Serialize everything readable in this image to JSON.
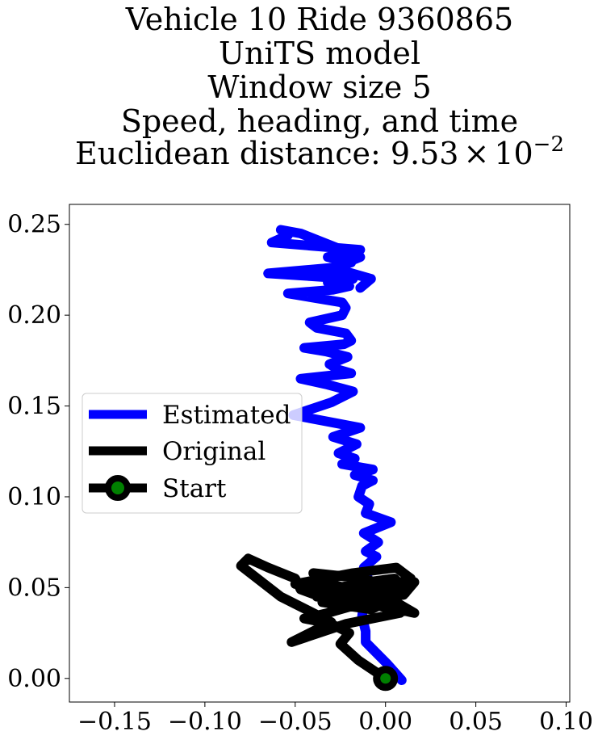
{
  "chart_data": {
    "type": "line",
    "title_lines": [
      "Vehicle 10 Ride 9360865",
      "UniTS model",
      "Window size 5",
      "Speed, heading, and time"
    ],
    "title_distance_prefix": "Euclidean distance: 9.53",
    "title_distance_times": "×",
    "title_distance_base": "10",
    "title_distance_exp": "−2",
    "xlim": [
      -0.175,
      0.102
    ],
    "ylim": [
      -0.013,
      0.261
    ],
    "xticks": [
      -0.15,
      -0.1,
      -0.05,
      0.0,
      0.05,
      0.1
    ],
    "xtick_labels": [
      "−0.15",
      "−0.10",
      "−0.05",
      "0.00",
      "0.05",
      "0.10"
    ],
    "yticks": [
      0.0,
      0.05,
      0.1,
      0.15,
      0.2,
      0.25
    ],
    "ytick_labels": [
      "0.00",
      "0.05",
      "0.10",
      "0.15",
      "0.20",
      "0.25"
    ],
    "grid": false,
    "legend_position": "center-left",
    "series": [
      {
        "name": "Estimated",
        "color": "#0000ff",
        "x": [
          0.009,
          0.001,
          -0.005,
          -0.011,
          -0.011,
          -0.013,
          -0.012,
          -0.015,
          -0.01,
          -0.012,
          -0.005,
          -0.011,
          -0.004,
          -0.012,
          0.003,
          -0.011,
          -0.009,
          -0.015,
          -0.014,
          -0.013,
          -0.007,
          -0.017,
          -0.007,
          -0.024,
          -0.017,
          -0.026,
          -0.016,
          -0.029,
          -0.014,
          -0.051,
          -0.03,
          -0.018,
          -0.033,
          -0.047,
          -0.019,
          -0.026,
          -0.031,
          -0.021,
          -0.033,
          -0.045,
          -0.023,
          -0.019,
          -0.022,
          -0.038,
          -0.042,
          -0.024,
          -0.022,
          -0.024,
          -0.054,
          -0.029,
          -0.02,
          -0.032,
          -0.018,
          -0.065,
          -0.031,
          -0.019,
          -0.032,
          -0.014,
          -0.063,
          -0.054,
          -0.058,
          -0.047,
          -0.014,
          -0.029,
          -0.008,
          -0.014
        ],
        "y": [
          -0.001,
          0.008,
          0.014,
          0.02,
          0.026,
          0.034,
          0.042,
          0.05,
          0.056,
          0.061,
          0.067,
          0.07,
          0.075,
          0.08,
          0.086,
          0.091,
          0.096,
          0.1,
          0.103,
          0.106,
          0.109,
          0.112,
          0.115,
          0.118,
          0.121,
          0.124,
          0.129,
          0.133,
          0.138,
          0.145,
          0.152,
          0.158,
          0.162,
          0.165,
          0.168,
          0.17,
          0.173,
          0.177,
          0.18,
          0.182,
          0.184,
          0.186,
          0.19,
          0.193,
          0.196,
          0.2,
          0.204,
          0.207,
          0.212,
          0.214,
          0.216,
          0.218,
          0.22,
          0.223,
          0.226,
          0.229,
          0.232,
          0.236,
          0.24,
          0.244,
          0.247,
          0.245,
          0.232,
          0.226,
          0.22,
          0.215
        ]
      },
      {
        "name": "Original",
        "color": "#000000",
        "x": [
          0.0,
          -0.015,
          -0.025,
          -0.02,
          -0.03,
          -0.045,
          -0.032,
          -0.018,
          -0.01,
          -0.005,
          -0.05,
          -0.018,
          0.006,
          0.014,
          0.0,
          -0.035,
          -0.008,
          0.011,
          -0.012,
          -0.04,
          -0.03,
          -0.009,
          -0.002,
          0.016,
          0.004,
          -0.038,
          -0.006,
          0.008,
          -0.022,
          -0.052,
          -0.03,
          -0.058,
          -0.08,
          -0.076,
          -0.065,
          -0.05,
          -0.047,
          -0.036,
          -0.025,
          -0.015,
          0.006,
          0.016,
          0.01,
          -0.008,
          -0.022,
          -0.034,
          -0.026,
          -0.01,
          0.005,
          0.01,
          -0.014
        ],
        "y": [
          0.0,
          0.01,
          0.019,
          0.025,
          0.03,
          0.033,
          0.036,
          0.04,
          0.043,
          0.047,
          0.052,
          0.058,
          0.061,
          0.055,
          0.05,
          0.042,
          0.038,
          0.047,
          0.055,
          0.058,
          0.052,
          0.046,
          0.04,
          0.036,
          0.043,
          0.045,
          0.041,
          0.036,
          0.03,
          0.02,
          0.031,
          0.045,
          0.062,
          0.066,
          0.061,
          0.055,
          0.049,
          0.045,
          0.042,
          0.044,
          0.047,
          0.053,
          0.046,
          0.045,
          0.046,
          0.048,
          0.05,
          0.053,
          0.055,
          0.05,
          0.044
        ]
      }
    ],
    "start": {
      "name": "Start",
      "x": 0.0,
      "y": 0.0,
      "edge_color": "#000000",
      "face_color": "#008000"
    }
  }
}
